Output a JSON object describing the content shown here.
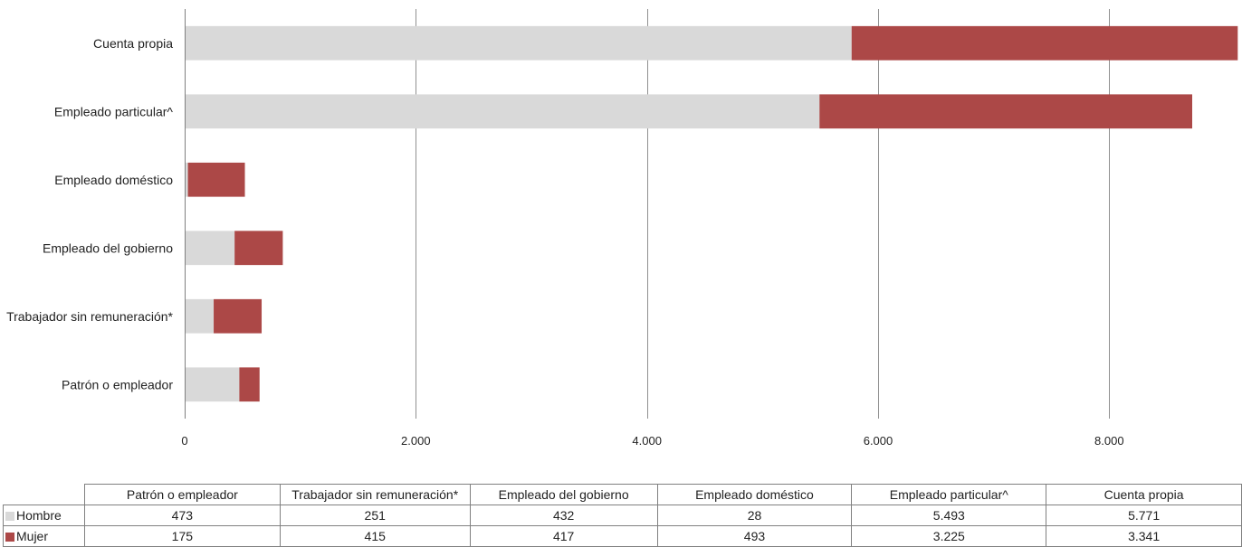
{
  "chart_data": {
    "type": "bar",
    "orientation": "horizontal",
    "stacked": true,
    "categories": [
      "Patrón o empleador",
      "Trabajador sin remuneración*",
      "Empleado del gobierno",
      "Empleado doméstico",
      "Empleado particular^",
      "Cuenta propia"
    ],
    "series": [
      {
        "name": "Hombre",
        "color": "#d9d9d9",
        "values": [
          473,
          251,
          432,
          28,
          5493,
          5771
        ]
      },
      {
        "name": "Mujer",
        "color": "#ac4847",
        "values": [
          175,
          415,
          417,
          493,
          3225,
          3341
        ]
      }
    ],
    "value_labels": {
      "Hombre": [
        "473",
        "251",
        "432",
        "28",
        "5.493",
        "5.771"
      ],
      "Mujer": [
        "175",
        "415",
        "417",
        "493",
        "3.225",
        "3.341"
      ]
    },
    "xlim": [
      0,
      9000
    ],
    "x_ticks": [
      0,
      2000,
      4000,
      6000,
      8000
    ],
    "x_tick_labels": [
      "0",
      "2.000",
      "4.000",
      "6.000",
      "8.000"
    ],
    "grid": true,
    "legend": "data-table",
    "title": "",
    "xlabel": "",
    "ylabel": ""
  }
}
